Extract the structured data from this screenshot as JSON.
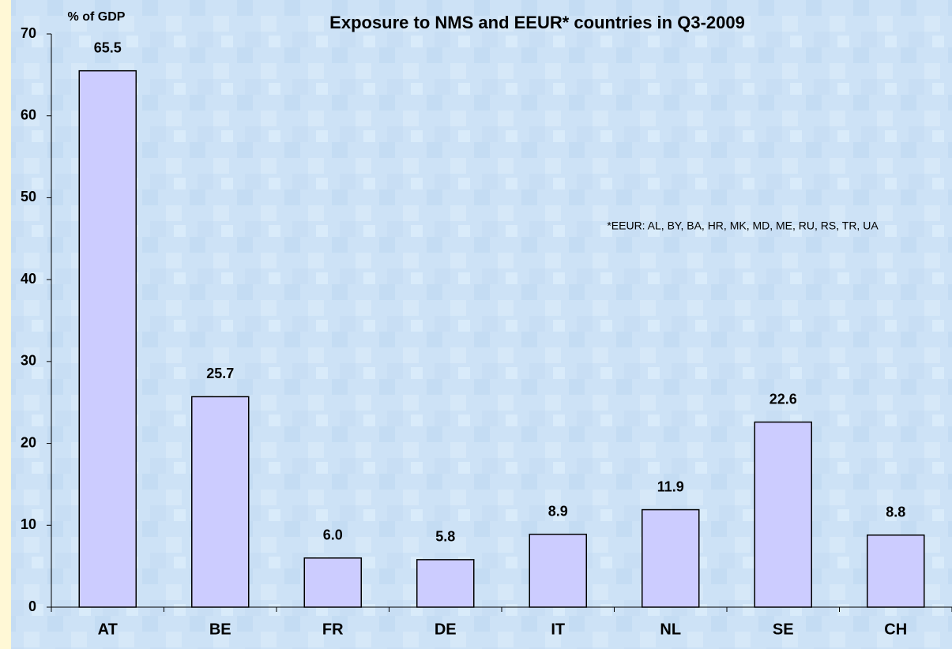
{
  "chart_data": {
    "type": "bar",
    "title": "Exposure to NMS and EEUR* countries in Q3-2009",
    "y_label": "% of GDP",
    "annotation": "*EEUR: AL, BY, BA, HR,  MK, MD, ME, RU, RS, TR, UA",
    "categories": [
      "AT",
      "BE",
      "FR",
      "DE",
      "IT",
      "NL",
      "SE",
      "CH"
    ],
    "values": [
      65.5,
      25.7,
      6.0,
      5.8,
      8.9,
      11.9,
      22.6,
      8.8
    ],
    "value_labels": [
      "65.5",
      "25.7",
      "6.0",
      "5.8",
      "8.9",
      "11.9",
      "22.6",
      "8.8"
    ],
    "color": "#ccccff",
    "ylim": [
      0,
      70
    ],
    "yticks": [
      0,
      10,
      20,
      30,
      40,
      50,
      60,
      70
    ]
  }
}
